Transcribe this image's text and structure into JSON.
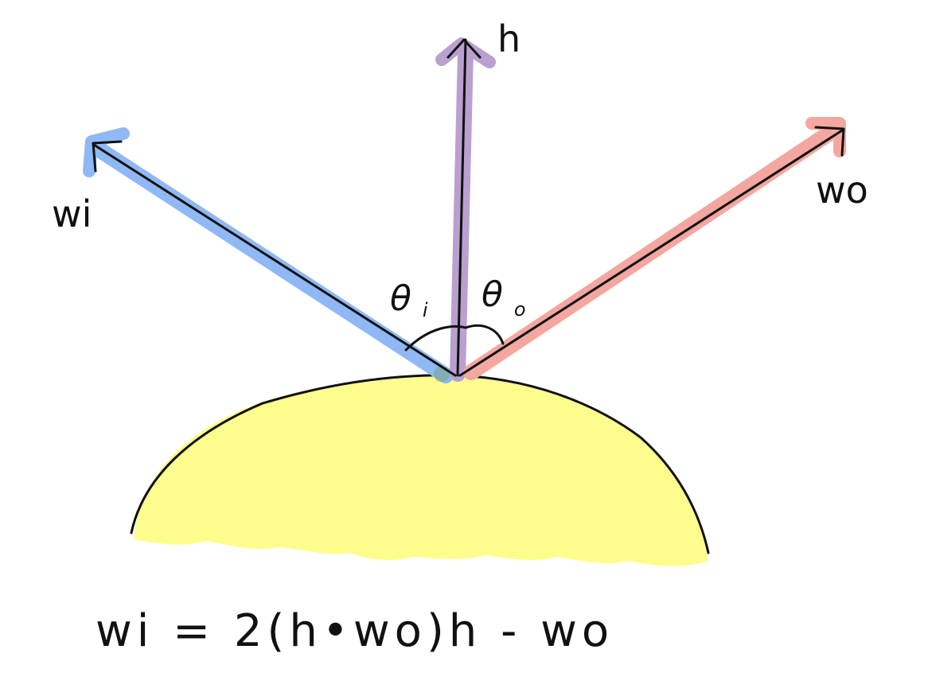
{
  "labels": {
    "wi": "wi",
    "wo": "wo",
    "h": "h",
    "theta": "θ",
    "theta_i_sub": "i",
    "theta_o_sub": "o"
  },
  "equation": "wi = 2(h•wo)h - wo",
  "colors": {
    "wi_highlight": "#8fb8f5",
    "h_highlight": "#b9a0cf",
    "wo_highlight": "#f4a7a0",
    "surface_fill": "#fdfd8e",
    "ink": "#111111"
  }
}
